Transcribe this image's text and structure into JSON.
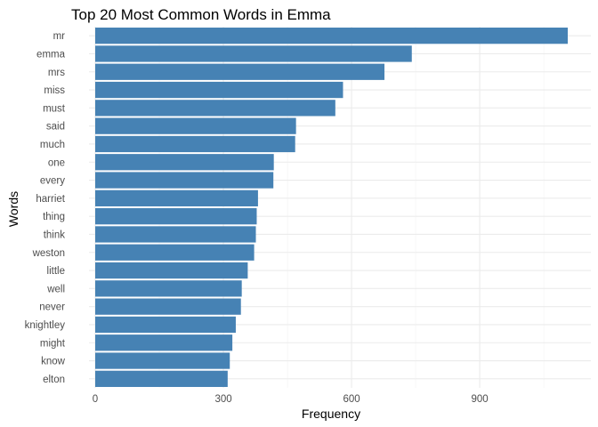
{
  "chart_data": {
    "type": "bar",
    "orientation": "horizontal",
    "title": "Top 20 Most Common Words in Emma",
    "xlabel": "Frequency",
    "ylabel": "Words",
    "categories": [
      "mr",
      "emma",
      "mrs",
      "miss",
      "must",
      "said",
      "much",
      "one",
      "every",
      "harriet",
      "thing",
      "think",
      "weston",
      "little",
      "well",
      "never",
      "knightley",
      "might",
      "know",
      "elton"
    ],
    "values": [
      1106,
      741,
      677,
      580,
      562,
      470,
      468,
      418,
      417,
      381,
      378,
      376,
      372,
      357,
      343,
      341,
      329,
      321,
      315,
      310
    ],
    "xlim": [
      0,
      1160
    ],
    "xticks": [
      0,
      300,
      600,
      900
    ],
    "xtick_labels": [
      "0",
      "300",
      "600",
      "900"
    ],
    "grid": true,
    "bar_color": "#4682B4"
  }
}
